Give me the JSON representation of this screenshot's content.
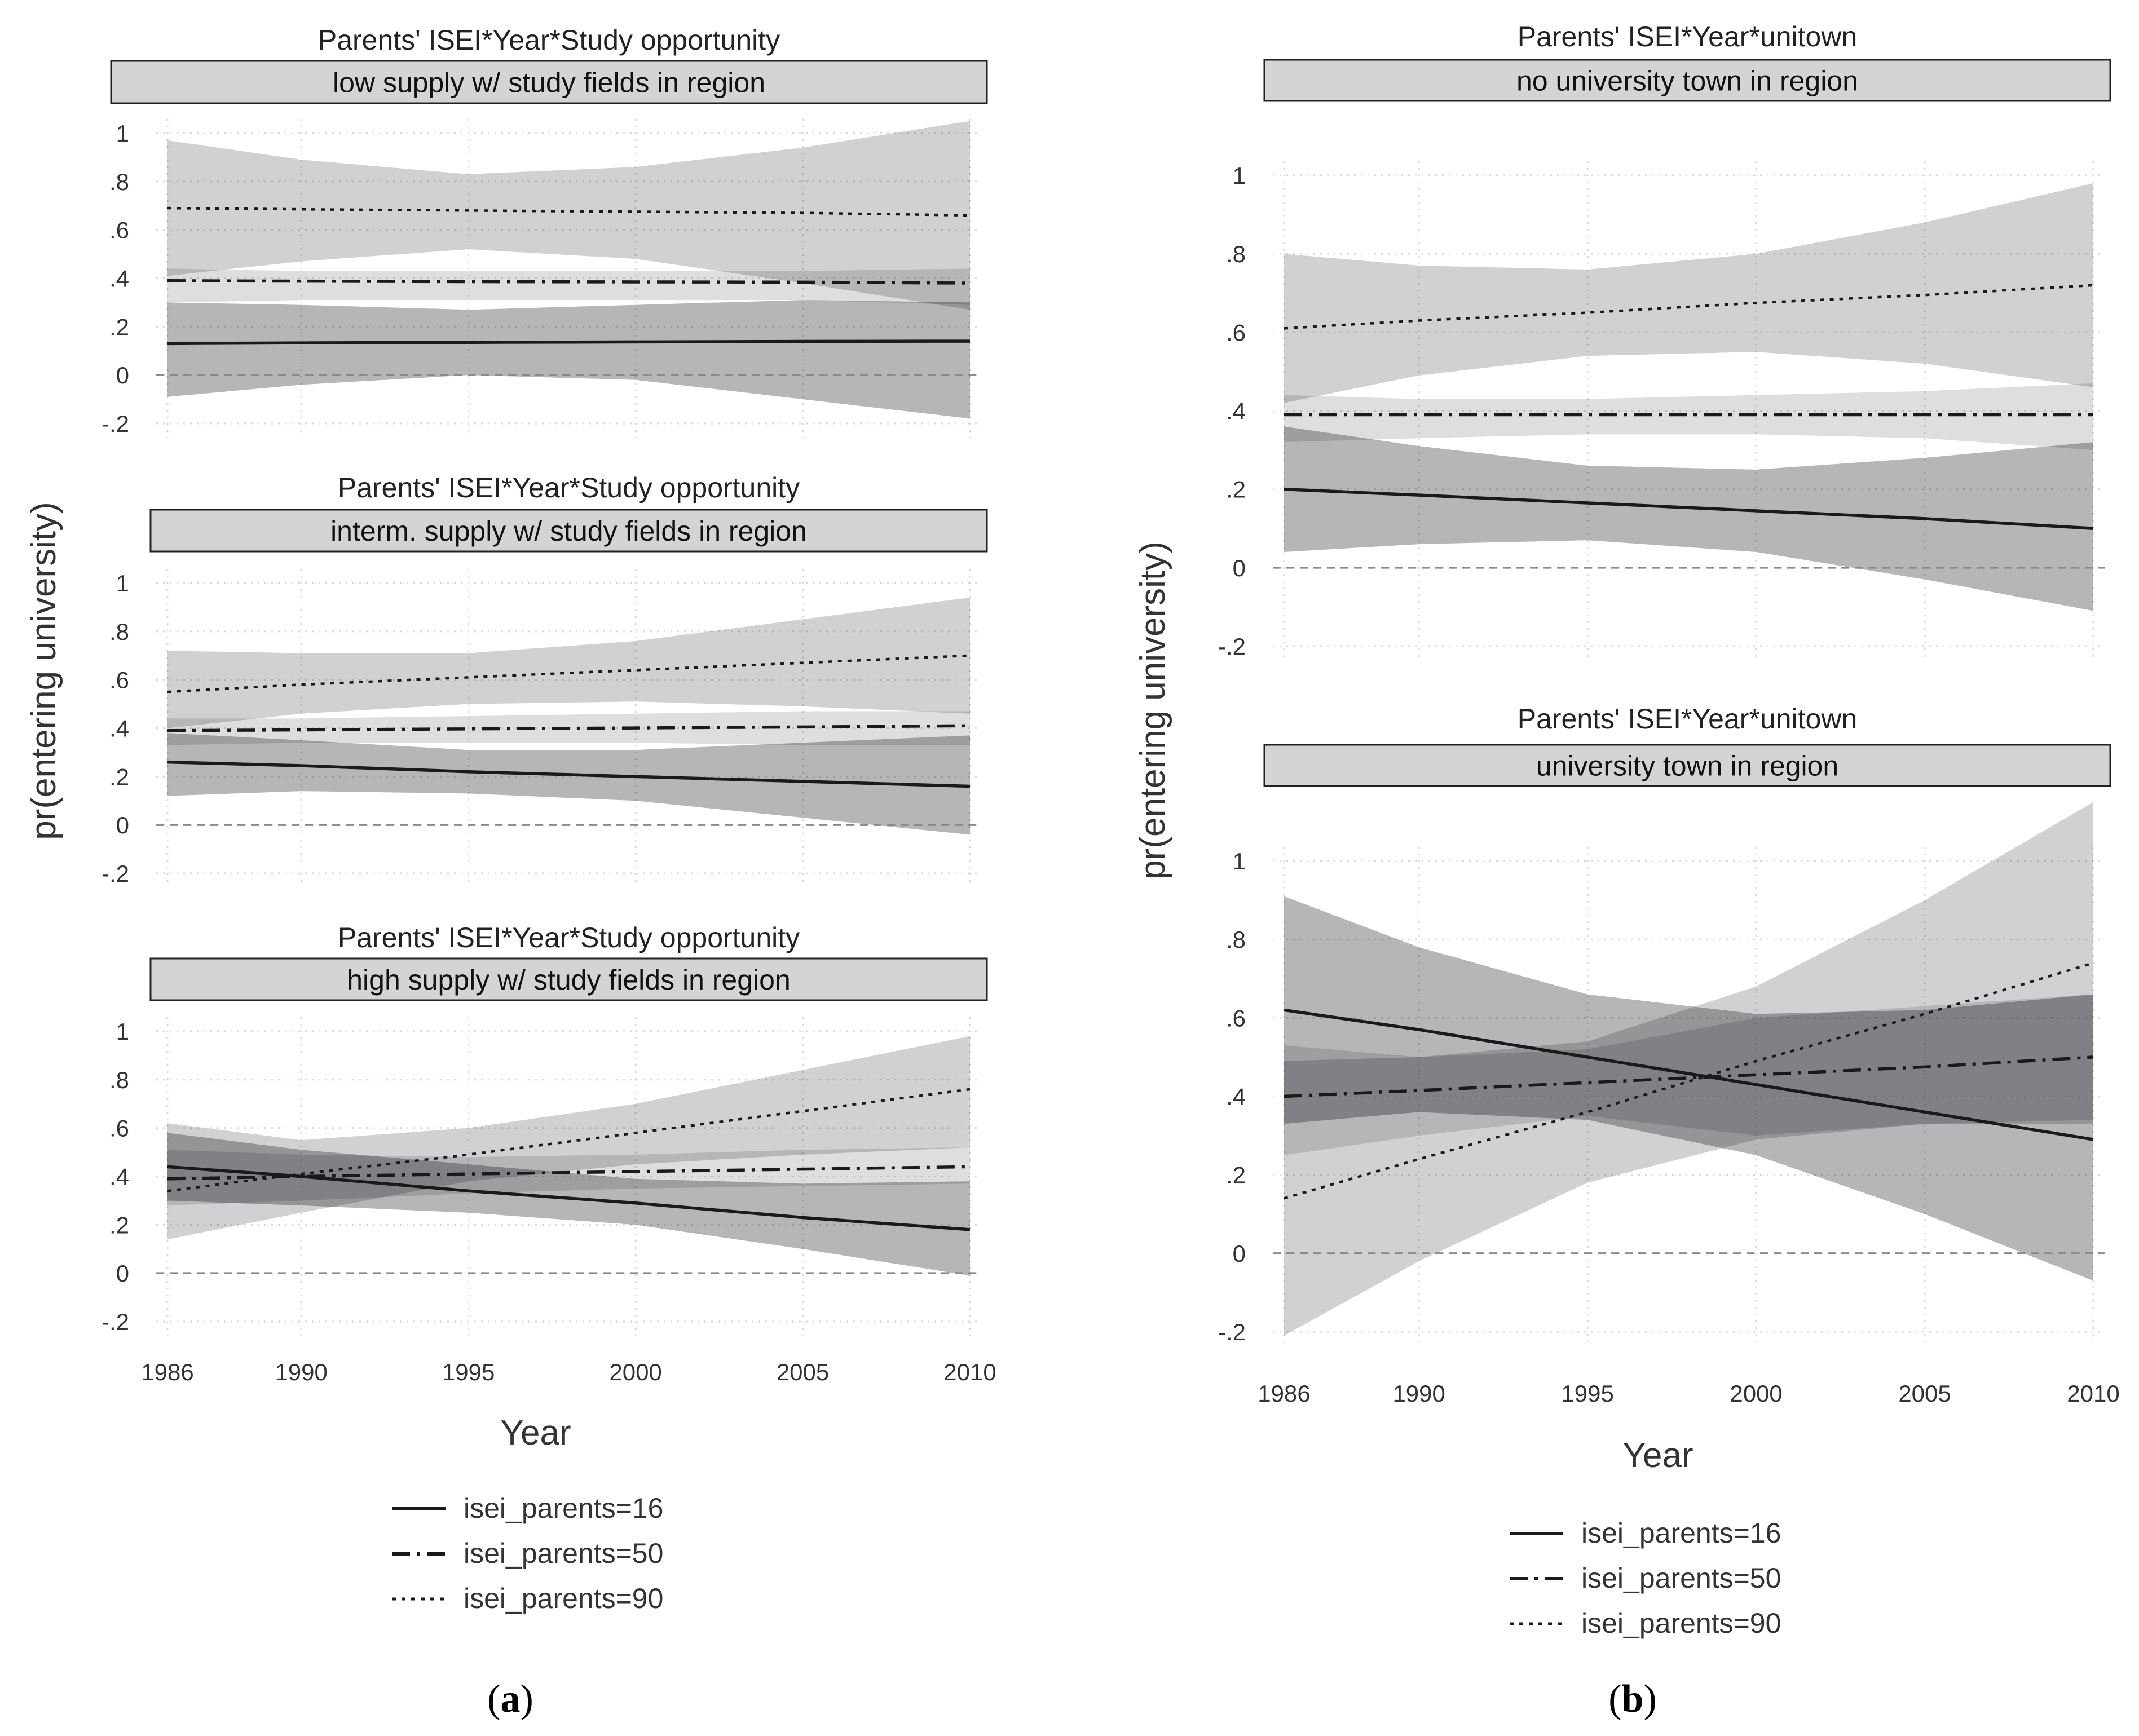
{
  "colors": {
    "band_16": "#a9a9ac",
    "band_50": "#d8d8da",
    "band_90": "#c9c9cb",
    "header_fill": "#d4d4d4",
    "line": "#1a1a1a",
    "grid": "#d9d9d9",
    "zero_line": "#8a8a8a"
  },
  "panels_a": {
    "subfigure_label_letter": "a",
    "xlabel": "Year",
    "ylabel": "pr(entering university)",
    "legend": [
      "isei_parents=16",
      "isei_parents=50",
      "isei_parents=90"
    ]
  },
  "panels_b": {
    "subfigure_label_letter": "b",
    "xlabel": "Year",
    "ylabel": "pr(entering university)",
    "legend": [
      "isei_parents=16",
      "isei_parents=50",
      "isei_parents=90"
    ]
  },
  "chart_data": [
    {
      "type": "line",
      "title": "Parents' ISEI*Year*Study opportunity",
      "subtitle": "low supply w/ study fields in region",
      "x": [
        1986,
        1990,
        1995,
        2000,
        2005,
        2010
      ],
      "ylim": [
        -0.2,
        1
      ],
      "yticks": [
        "-.2",
        "0",
        ".2",
        ".4",
        ".6",
        ".8",
        "1"
      ],
      "xticks": [],
      "series": [
        {
          "name": "isei_parents=16",
          "style": "solid",
          "values": [
            0.13,
            0.133,
            0.135,
            0.137,
            0.139,
            0.14
          ],
          "lower": [
            -0.09,
            -0.04,
            0.0,
            -0.02,
            -0.1,
            -0.18
          ],
          "upper": [
            0.3,
            0.29,
            0.27,
            0.29,
            0.31,
            0.3
          ]
        },
        {
          "name": "isei_parents=50",
          "style": "dashdot",
          "values": [
            0.39,
            0.388,
            0.386,
            0.385,
            0.384,
            0.38
          ],
          "lower": [
            0.3,
            0.31,
            0.31,
            0.31,
            0.31,
            0.29
          ],
          "upper": [
            0.44,
            0.43,
            0.43,
            0.43,
            0.43,
            0.44
          ]
        },
        {
          "name": "isei_parents=90",
          "style": "dotted",
          "values": [
            0.69,
            0.685,
            0.68,
            0.675,
            0.67,
            0.66
          ],
          "lower": [
            0.41,
            0.47,
            0.52,
            0.48,
            0.38,
            0.27
          ],
          "upper": [
            0.97,
            0.89,
            0.83,
            0.86,
            0.94,
            1.05
          ]
        }
      ]
    },
    {
      "type": "line",
      "title": "Parents' ISEI*Year*Study opportunity",
      "subtitle": "interm. supply w/ study fields in region",
      "x": [
        1986,
        1990,
        1995,
        2000,
        2005,
        2010
      ],
      "ylim": [
        -0.2,
        1
      ],
      "yticks": [
        "-.2",
        "0",
        ".2",
        ".4",
        ".6",
        ".8",
        "1"
      ],
      "xticks": [],
      "series": [
        {
          "name": "isei_parents=16",
          "style": "solid",
          "values": [
            0.26,
            0.245,
            0.22,
            0.2,
            0.18,
            0.16
          ],
          "lower": [
            0.12,
            0.14,
            0.13,
            0.1,
            0.03,
            -0.04
          ],
          "upper": [
            0.38,
            0.35,
            0.31,
            0.31,
            0.34,
            0.37
          ]
        },
        {
          "name": "isei_parents=50",
          "style": "dashdot",
          "values": [
            0.39,
            0.393,
            0.397,
            0.401,
            0.405,
            0.41
          ],
          "lower": [
            0.33,
            0.34,
            0.34,
            0.34,
            0.33,
            0.33
          ],
          "upper": [
            0.44,
            0.44,
            0.45,
            0.46,
            0.47,
            0.47
          ]
        },
        {
          "name": "isei_parents=90",
          "style": "dotted",
          "values": [
            0.55,
            0.58,
            0.61,
            0.64,
            0.67,
            0.7
          ],
          "lower": [
            0.4,
            0.46,
            0.5,
            0.51,
            0.49,
            0.46
          ],
          "upper": [
            0.72,
            0.71,
            0.71,
            0.76,
            0.85,
            0.94
          ]
        }
      ]
    },
    {
      "type": "line",
      "title": "Parents' ISEI*Year*Study opportunity",
      "subtitle": "high supply w/ study fields in region",
      "x": [
        1986,
        1990,
        1995,
        2000,
        2005,
        2010
      ],
      "ylim": [
        -0.2,
        1
      ],
      "yticks": [
        "-.2",
        "0",
        ".2",
        ".4",
        ".6",
        ".8",
        "1"
      ],
      "xticks": [
        "1986",
        "1990",
        "1995",
        "2000",
        "2005",
        "2010"
      ],
      "series": [
        {
          "name": "isei_parents=16",
          "style": "solid",
          "values": [
            0.44,
            0.4,
            0.34,
            0.29,
            0.23,
            0.18
          ],
          "lower": [
            0.3,
            0.28,
            0.25,
            0.2,
            0.1,
            -0.01
          ],
          "upper": [
            0.58,
            0.51,
            0.45,
            0.39,
            0.37,
            0.38
          ]
        },
        {
          "name": "isei_parents=50",
          "style": "dashdot",
          "values": [
            0.39,
            0.4,
            0.41,
            0.42,
            0.43,
            0.44
          ],
          "lower": [
            0.28,
            0.3,
            0.33,
            0.35,
            0.36,
            0.37
          ],
          "upper": [
            0.51,
            0.49,
            0.48,
            0.49,
            0.51,
            0.52
          ]
        },
        {
          "name": "isei_parents=90",
          "style": "dotted",
          "values": [
            0.34,
            0.41,
            0.49,
            0.58,
            0.67,
            0.76
          ],
          "lower": [
            0.14,
            0.25,
            0.38,
            0.45,
            0.49,
            0.52
          ],
          "upper": [
            0.62,
            0.55,
            0.6,
            0.7,
            0.84,
            0.98
          ]
        }
      ]
    },
    {
      "type": "line",
      "title": "Parents' ISEI*Year*unitown",
      "subtitle": "no university town in region",
      "x": [
        1986,
        1990,
        1995,
        2000,
        2005,
        2010
      ],
      "ylim": [
        -0.2,
        1
      ],
      "yticks": [
        "-.2",
        "0",
        ".2",
        ".4",
        ".6",
        ".8",
        "1"
      ],
      "xticks": [],
      "series": [
        {
          "name": "isei_parents=16",
          "style": "solid",
          "values": [
            0.2,
            0.185,
            0.165,
            0.145,
            0.125,
            0.1
          ],
          "lower": [
            0.04,
            0.06,
            0.07,
            0.04,
            -0.03,
            -0.11
          ],
          "upper": [
            0.36,
            0.31,
            0.26,
            0.25,
            0.28,
            0.32
          ]
        },
        {
          "name": "isei_parents=50",
          "style": "dashdot",
          "values": [
            0.39,
            0.39,
            0.39,
            0.39,
            0.39,
            0.39
          ],
          "lower": [
            0.32,
            0.33,
            0.34,
            0.34,
            0.33,
            0.3
          ],
          "upper": [
            0.44,
            0.43,
            0.43,
            0.44,
            0.45,
            0.47
          ]
        },
        {
          "name": "isei_parents=90",
          "style": "dotted",
          "values": [
            0.61,
            0.63,
            0.65,
            0.675,
            0.695,
            0.72
          ],
          "lower": [
            0.42,
            0.49,
            0.54,
            0.55,
            0.52,
            0.46
          ],
          "upper": [
            0.8,
            0.77,
            0.76,
            0.8,
            0.88,
            0.98
          ]
        }
      ]
    },
    {
      "type": "line",
      "title": "Parents' ISEI*Year*unitown",
      "subtitle": "university town in region",
      "x": [
        1986,
        1990,
        1995,
        2000,
        2005,
        2010
      ],
      "ylim": [
        -0.2,
        1
      ],
      "yticks": [
        "-.2",
        "0",
        ".2",
        ".4",
        ".6",
        ".8",
        "1"
      ],
      "xticks": [
        "1986",
        "1990",
        "1995",
        "2000",
        "2005",
        "2010"
      ],
      "series": [
        {
          "name": "isei_parents=16",
          "style": "solid",
          "values": [
            0.62,
            0.57,
            0.5,
            0.43,
            0.36,
            0.29
          ],
          "lower": [
            0.33,
            0.36,
            0.34,
            0.25,
            0.1,
            -0.07
          ],
          "upper": [
            0.91,
            0.78,
            0.66,
            0.61,
            0.62,
            0.66
          ]
        },
        {
          "name": "isei_parents=50",
          "style": "dashdot",
          "values": [
            0.4,
            0.415,
            0.435,
            0.455,
            0.475,
            0.5
          ],
          "lower": [
            0.25,
            0.3,
            0.35,
            0.3,
            0.33,
            0.34
          ],
          "upper": [
            0.53,
            0.5,
            0.52,
            0.6,
            0.63,
            0.66
          ]
        },
        {
          "name": "isei_parents=90",
          "style": "dotted",
          "values": [
            0.14,
            0.24,
            0.36,
            0.49,
            0.61,
            0.74
          ],
          "lower": [
            -0.21,
            -0.02,
            0.18,
            0.29,
            0.33,
            0.33
          ],
          "upper": [
            0.49,
            0.5,
            0.54,
            0.68,
            0.9,
            1.15
          ]
        }
      ]
    }
  ]
}
